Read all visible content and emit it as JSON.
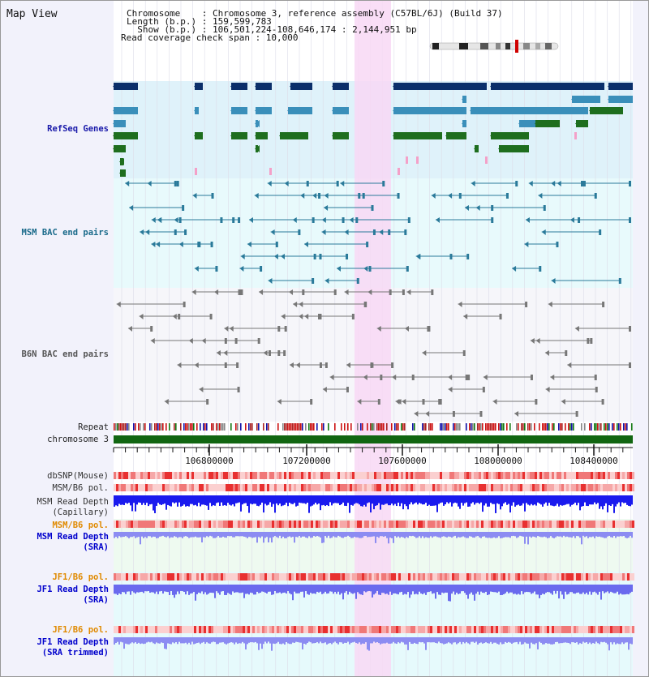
{
  "view_title": "Map View",
  "info": {
    "chromosome": "Chromosome    : Chromosome 3, reference assembly (C57BL/6J) (Build 37)",
    "length": "Length (b.p.) : 159,599,783",
    "show": "  Show (b.p.) : 106,501,224-108,646,174 : 2,144,951 bp",
    "coverage": "Read coverage check span : 10,000"
  },
  "labels": {
    "refseq": "RefSeq Genes",
    "msm_bac": "MSM BAC end pairs",
    "b6n_bac": "B6N BAC end pairs",
    "repeat": "Repeat",
    "chromosome": "chromosome 3",
    "dbsnp": "dbSNP(Mouse)",
    "msm_pol": "MSM/B6 pol.",
    "msm_depth_cap": "MSM Read Depth",
    "msm_depth_cap_sub": "(Capillary)",
    "msm_pol2": "MSM/B6 pol.",
    "msm_depth_sra": "MSM Read Depth",
    "msm_depth_sra_sub": "(SRA)",
    "jf1_pol": "JF1/B6 pol.",
    "jf1_depth": "JF1 Read Depth",
    "jf1_depth_sub": "(SRA)",
    "jf1_pol2": "JF1/B6 pol.",
    "jf1_depth_trim": "JF1 Read Depth",
    "jf1_depth_trim_sub": "(SRA trimmed)"
  },
  "axis": {
    "ticks": [
      "106800000",
      "107200000",
      "107600000",
      "108000000",
      "108400000"
    ]
  },
  "colors": {
    "highlight": "#f8d8f4",
    "refseq_bg": "#dff2fa",
    "msm_bg": "#e8fafc",
    "b6n_bg": "#f4f4f8",
    "gene_dark": "#0b2f6a",
    "gene_mid": "#3a8fba",
    "gene_green": "#1e6e1e",
    "chromosome_bar": "#116611"
  }
}
